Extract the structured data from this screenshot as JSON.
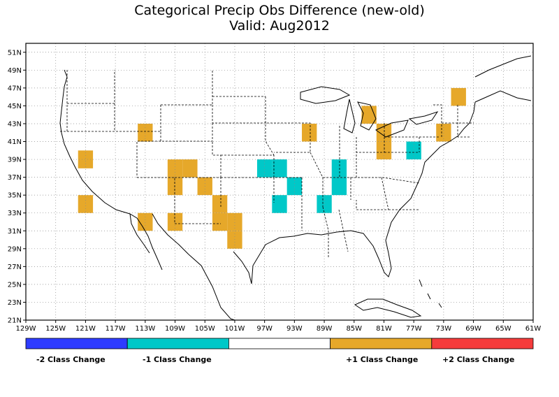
{
  "title": "Categorical Precip Obs Difference (new-old)",
  "subtitle": "Valid: Aug2012",
  "map": {
    "lon_range": [
      -129,
      -61
    ],
    "lat_range": [
      21,
      52
    ],
    "lon_ticks": [
      "129W",
      "125W",
      "121W",
      "117W",
      "113W",
      "109W",
      "105W",
      "101W",
      "97W",
      "93W",
      "89W",
      "85W",
      "81W",
      "77W",
      "73W",
      "69W",
      "65W",
      "61W"
    ],
    "lat_ticks": [
      "21N",
      "23N",
      "25N",
      "27N",
      "29N",
      "31N",
      "33N",
      "35N",
      "37N",
      "39N",
      "41N",
      "43N",
      "45N",
      "47N",
      "49N",
      "51N"
    ],
    "grid": "dotted"
  },
  "legend": {
    "categories": [
      {
        "label": "-2 Class Change",
        "color": "#2e3cff"
      },
      {
        "label": "-1 Class Change",
        "color": "#00c8c8"
      },
      {
        "label": "",
        "color": "#ffffff"
      },
      {
        "label": "+1 Class Change",
        "color": "#e6a82a"
      },
      {
        "label": "+2 Class Change",
        "color": "#f53c3c"
      }
    ]
  },
  "cells": [
    {
      "lon": -121,
      "lat": 39,
      "cat": 1
    },
    {
      "lon": -121,
      "lat": 34,
      "cat": 1
    },
    {
      "lon": -113,
      "lat": 42,
      "cat": 1
    },
    {
      "lon": -113,
      "lat": 32,
      "cat": 1
    },
    {
      "lon": -109,
      "lat": 38,
      "cat": 1
    },
    {
      "lon": -109,
      "lat": 36,
      "cat": 1
    },
    {
      "lon": -109,
      "lat": 32,
      "cat": 1
    },
    {
      "lon": -107,
      "lat": 38,
      "cat": 1
    },
    {
      "lon": -105,
      "lat": 36,
      "cat": 1
    },
    {
      "lon": -103,
      "lat": 34,
      "cat": 1
    },
    {
      "lon": -103,
      "lat": 32,
      "cat": 1
    },
    {
      "lon": -101,
      "lat": 32,
      "cat": 1
    },
    {
      "lon": -101,
      "lat": 30,
      "cat": 1
    },
    {
      "lon": -97,
      "lat": 38,
      "cat": -1
    },
    {
      "lon": -95,
      "lat": 38,
      "cat": -1
    },
    {
      "lon": -95,
      "lat": 34,
      "cat": -1
    },
    {
      "lon": -93,
      "lat": 36,
      "cat": -1
    },
    {
      "lon": -91,
      "lat": 42,
      "cat": 1
    },
    {
      "lon": -89,
      "lat": 34,
      "cat": -1
    },
    {
      "lon": -87,
      "lat": 38,
      "cat": -1
    },
    {
      "lon": -87,
      "lat": 36,
      "cat": -1
    },
    {
      "lon": -83,
      "lat": 44,
      "cat": 1
    },
    {
      "lon": -81,
      "lat": 42,
      "cat": 1
    },
    {
      "lon": -81,
      "lat": 40,
      "cat": 1
    },
    {
      "lon": -77,
      "lat": 40,
      "cat": -1
    },
    {
      "lon": -73,
      "lat": 42,
      "cat": 1
    },
    {
      "lon": -71,
      "lat": 46,
      "cat": 1
    }
  ]
}
